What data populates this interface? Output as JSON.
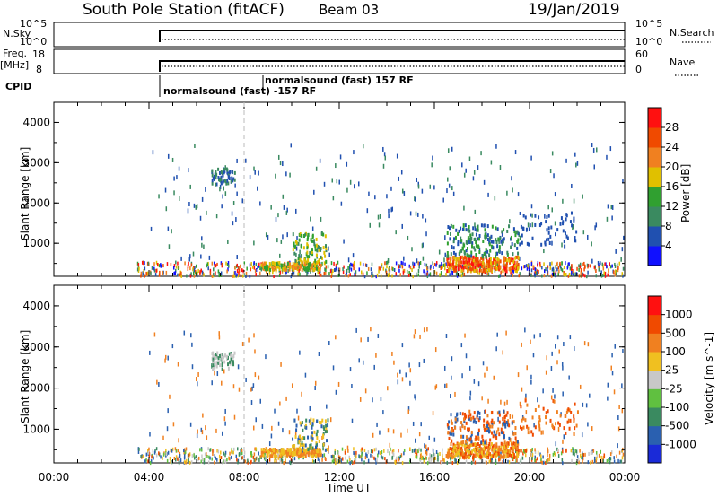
{
  "header": {
    "station": "South Pole Station (fitACF)",
    "beam": "Beam 03",
    "date": "19/Jan/2019"
  },
  "top_panels": {
    "nsky_label": "N.Sky",
    "nsky_tick_top": "10^5",
    "nsky_tick_bottom": "10^0",
    "nsearch_label": "N.Search",
    "nsearch_tick_top": "10^5",
    "nsearch_tick_bottom": "10^0",
    "freq_label_1": "Freq.",
    "freq_label_2": "[MHz]",
    "freq_tick_top": "18",
    "freq_tick_bottom": "8",
    "nave_label": "Nave",
    "nave_tick_top": "60",
    "nave_tick_bottom": "0",
    "cpid_label": "CPID",
    "cpid_1": "normalsound (fast) -157 RF",
    "cpid_2": "normalsound (fast) 157 RF"
  },
  "chart_data": [
    {
      "type": "heatmap",
      "title": "",
      "ylabel": "Slant Range [km]",
      "xlabel": "",
      "ylim": [
        180,
        4500
      ],
      "xlim_hours": [
        0,
        24
      ],
      "yticks": [
        "1000",
        "2000",
        "3000",
        "4000"
      ],
      "colorbar_label": "Power [dB]",
      "colorbar_ticks": [
        "4",
        "8",
        "12",
        "16",
        "20",
        "24",
        "28"
      ],
      "colorbar_colors": [
        "#1010ff",
        "#2050b0",
        "#3a8a60",
        "#30a030",
        "#e0c000",
        "#f08020",
        "#f04a00",
        "#ff1010"
      ],
      "features": [
        {
          "desc": "ground scatter band",
          "x_hours": [
            3.5,
            24
          ],
          "y_km": [
            200,
            600
          ],
          "level": "mixed"
        },
        {
          "desc": "patch",
          "x_hours": [
            6.5,
            7.5
          ],
          "y_km": [
            2500,
            2900
          ],
          "level": "low"
        },
        {
          "desc": "strong echo",
          "x_hours": [
            17.2,
            19.0
          ],
          "y_km": [
            350,
            550
          ],
          "level": "high"
        }
      ]
    },
    {
      "type": "heatmap",
      "title": "",
      "ylabel": "Slant Range [km]",
      "xlabel": "Time UT",
      "ylim": [
        180,
        4500
      ],
      "xlim_hours": [
        0,
        24
      ],
      "xticks": [
        "00:00",
        "04:00",
        "08:00",
        "12:00",
        "16:00",
        "20:00",
        "00:00"
      ],
      "yticks": [
        "1000",
        "2000",
        "3000",
        "4000"
      ],
      "colorbar_label": "Velocity [m s^-1]",
      "colorbar_ticks": [
        "1000",
        "500",
        "100",
        "25",
        "-25",
        "-100",
        "-500",
        "-1000"
      ],
      "colorbar_colors": [
        "#1a2ad8",
        "#2a60b0",
        "#3a8a60",
        "#60c040",
        "#c8c8c8",
        "#f0c020",
        "#f08020",
        "#f04a00",
        "#ff1010"
      ]
    }
  ]
}
